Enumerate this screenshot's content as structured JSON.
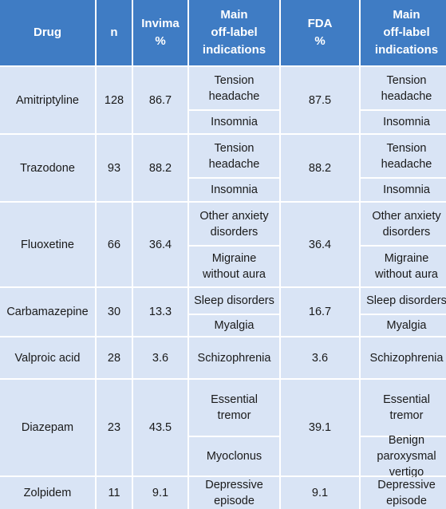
{
  "headers": [
    "Drug",
    "n",
    "Invima\n%",
    "Main\noff-label\nindications",
    "FDA\n%",
    "Main\noff-label\nindications"
  ],
  "rows": [
    {
      "drug": "Amitriptyline",
      "n": "128",
      "invima": "86.7",
      "fda": "87.5",
      "invima_ind": [
        "Tension\nheadache",
        "Insomnia"
      ],
      "fda_ind": [
        "Tension\nheadache",
        "Insomnia"
      ]
    },
    {
      "drug": "Trazodone",
      "n": "93",
      "invima": "88.2",
      "fda": "88.2",
      "invima_ind": [
        "Tension\nheadache",
        "Insomnia"
      ],
      "fda_ind": [
        "Tension\nheadache",
        "Insomnia"
      ]
    },
    {
      "drug": "Fluoxetine",
      "n": "66",
      "invima": "36.4",
      "fda": "36.4",
      "invima_ind": [
        "Other anxiety\ndisorders",
        "Migraine\nwithout aura"
      ],
      "fda_ind": [
        "Other anxiety\ndisorders",
        "Migraine\nwithout aura"
      ]
    },
    {
      "drug": "Carbamazepine",
      "n": "30",
      "invima": "13.3",
      "fda": "16.7",
      "invima_ind": [
        "Sleep disorders",
        "Myalgia"
      ],
      "fda_ind": [
        "Sleep disorders",
        "Myalgia"
      ]
    },
    {
      "drug": "Valproic acid",
      "n": "28",
      "invima": "3.6",
      "fda": "3.6",
      "invima_ind": [
        "Schizophrenia"
      ],
      "fda_ind": [
        "Schizophrenia"
      ]
    },
    {
      "drug": "Diazepam",
      "n": "23",
      "invima": "43.5",
      "fda": "39.1",
      "invima_ind": [
        "Essential\ntremor",
        "Myoclonus"
      ],
      "fda_ind": [
        "Essential\ntremor",
        "Benign\nparoxysmal\nvertigo"
      ]
    },
    {
      "drug": "Zolpidem",
      "n": "11",
      "invima": "9.1",
      "fda": "9.1",
      "invima_ind": [
        "Depressive\nepisode"
      ],
      "fda_ind": [
        "Depressive\nepisode"
      ]
    }
  ]
}
